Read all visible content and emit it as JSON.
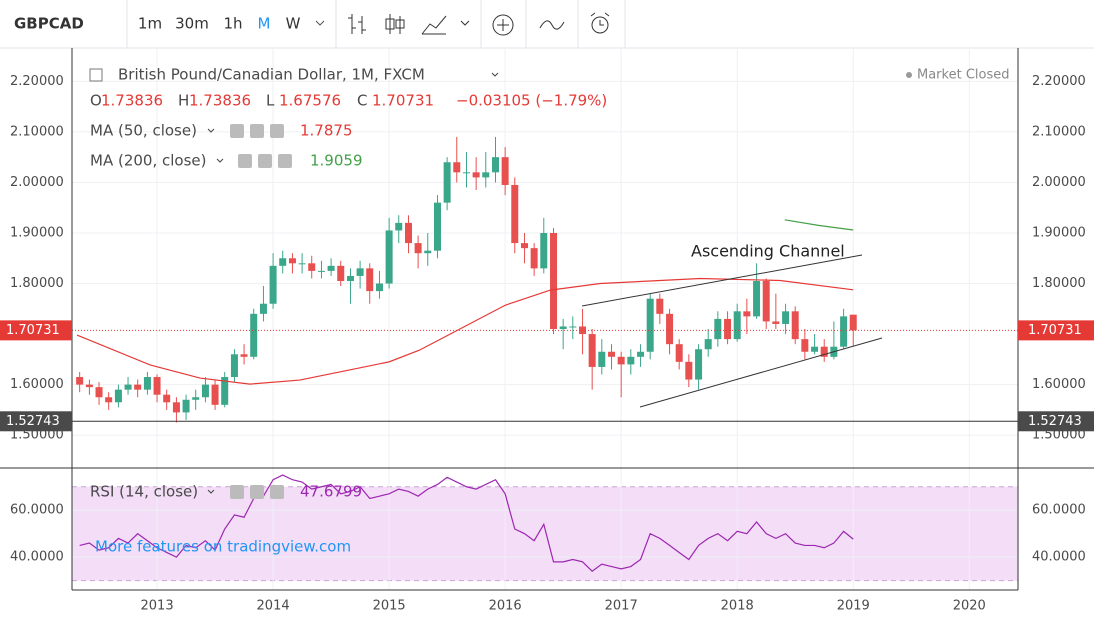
{
  "toolbar": {
    "symbol": "GBPCAD",
    "intervals": [
      "1m",
      "30m",
      "1h",
      "M",
      "W"
    ],
    "active_interval": 3
  },
  "legend": {
    "title": "British Pound/Canadian Dollar, 1M, FXCM",
    "ohlc_labels": [
      "O",
      "H",
      "L",
      "C"
    ],
    "change": "−0.03105 (−1.79%)",
    "status": "Market Closed"
  },
  "watermark": "More features on tradingview.com",
  "chart_data": {
    "type": "candlestick",
    "x": [
      2012.333,
      2012.417,
      2012.5,
      2012.583,
      2012.667,
      2012.75,
      2012.833,
      2012.917,
      2013.0,
      2013.083,
      2013.167,
      2013.25,
      2013.333,
      2013.417,
      2013.5,
      2013.583,
      2013.667,
      2013.75,
      2013.833,
      2013.917,
      2014.0,
      2014.083,
      2014.167,
      2014.25,
      2014.333,
      2014.417,
      2014.5,
      2014.583,
      2014.667,
      2014.75,
      2014.833,
      2014.917,
      2015.0,
      2015.083,
      2015.167,
      2015.25,
      2015.333,
      2015.417,
      2015.5,
      2015.583,
      2015.667,
      2015.75,
      2015.833,
      2015.917,
      2016.0,
      2016.083,
      2016.167,
      2016.25,
      2016.333,
      2016.417,
      2016.5,
      2016.583,
      2016.667,
      2016.75,
      2016.833,
      2016.917,
      2017.0,
      2017.083,
      2017.167,
      2017.25,
      2017.333,
      2017.417,
      2017.5,
      2017.583,
      2017.667,
      2017.75,
      2017.833,
      2017.917,
      2018.0,
      2018.083,
      2018.167,
      2018.25,
      2018.333,
      2018.417,
      2018.5,
      2018.583,
      2018.667,
      2018.75,
      2018.833,
      2018.917,
      2019.0
    ],
    "open": [
      1.615,
      1.6,
      1.595,
      1.575,
      1.565,
      1.59,
      1.6,
      1.59,
      1.615,
      1.58,
      1.565,
      1.545,
      1.57,
      1.575,
      1.6,
      1.56,
      1.615,
      1.66,
      1.655,
      1.74,
      1.76,
      1.835,
      1.85,
      1.84,
      1.84,
      1.825,
      1.825,
      1.835,
      1.805,
      1.815,
      1.83,
      1.785,
      1.8,
      1.905,
      1.92,
      1.88,
      1.86,
      1.865,
      1.96,
      2.04,
      2.02,
      2.02,
      2.01,
      2.02,
      2.05,
      1.995,
      1.88,
      1.87,
      1.83,
      1.9,
      1.71,
      1.715,
      1.715,
      1.7,
      1.635,
      1.665,
      1.655,
      1.64,
      1.655,
      1.665,
      1.77,
      1.74,
      1.68,
      1.645,
      1.61,
      1.67,
      1.69,
      1.73,
      1.69,
      1.745,
      1.735,
      1.805,
      1.725,
      1.72,
      1.745,
      1.69,
      1.665,
      1.675,
      1.655,
      1.675,
      1.73836
    ],
    "high": [
      1.625,
      1.61,
      1.605,
      1.585,
      1.6,
      1.615,
      1.61,
      1.625,
      1.62,
      1.59,
      1.575,
      1.58,
      1.59,
      1.615,
      1.61,
      1.625,
      1.67,
      1.68,
      1.75,
      1.795,
      1.86,
      1.865,
      1.86,
      1.86,
      1.855,
      1.845,
      1.85,
      1.845,
      1.83,
      1.845,
      1.84,
      1.825,
      1.93,
      1.935,
      1.935,
      1.895,
      1.9,
      1.975,
      2.05,
      2.09,
      2.06,
      2.05,
      2.06,
      2.09,
      2.07,
      2.01,
      1.9,
      1.88,
      1.93,
      1.91,
      1.73,
      1.735,
      1.75,
      1.71,
      1.69,
      1.68,
      1.665,
      1.67,
      1.68,
      1.78,
      1.78,
      1.75,
      1.69,
      1.66,
      1.68,
      1.71,
      1.745,
      1.745,
      1.76,
      1.77,
      1.84,
      1.81,
      1.78,
      1.76,
      1.755,
      1.71,
      1.7,
      1.69,
      1.725,
      1.75,
      1.73836
    ],
    "low": [
      1.585,
      1.58,
      1.56,
      1.55,
      1.555,
      1.58,
      1.575,
      1.58,
      1.565,
      1.55,
      1.525,
      1.53,
      1.55,
      1.565,
      1.55,
      1.555,
      1.605,
      1.64,
      1.65,
      1.725,
      1.75,
      1.82,
      1.82,
      1.82,
      1.81,
      1.81,
      1.815,
      1.795,
      1.76,
      1.79,
      1.76,
      1.77,
      1.79,
      1.88,
      1.86,
      1.83,
      1.835,
      1.85,
      1.945,
      2.0,
      1.99,
      1.985,
      1.99,
      2.0,
      1.975,
      1.86,
      1.84,
      1.815,
      1.82,
      1.7,
      1.67,
      1.69,
      1.66,
      1.59,
      1.62,
      1.63,
      1.575,
      1.62,
      1.635,
      1.65,
      1.72,
      1.66,
      1.63,
      1.595,
      1.59,
      1.655,
      1.675,
      1.68,
      1.685,
      1.7,
      1.73,
      1.71,
      1.71,
      1.7,
      1.68,
      1.65,
      1.66,
      1.645,
      1.65,
      1.67,
      1.67576
    ],
    "close": [
      1.6,
      1.595,
      1.575,
      1.565,
      1.59,
      1.6,
      1.59,
      1.615,
      1.58,
      1.565,
      1.545,
      1.57,
      1.575,
      1.6,
      1.56,
      1.615,
      1.66,
      1.655,
      1.74,
      1.76,
      1.835,
      1.85,
      1.84,
      1.84,
      1.825,
      1.825,
      1.835,
      1.805,
      1.815,
      1.83,
      1.785,
      1.8,
      1.905,
      1.92,
      1.88,
      1.86,
      1.865,
      1.96,
      2.04,
      2.02,
      2.02,
      2.01,
      2.02,
      2.05,
      1.995,
      1.88,
      1.87,
      1.83,
      1.9,
      1.71,
      1.715,
      1.715,
      1.7,
      1.635,
      1.665,
      1.655,
      1.64,
      1.655,
      1.665,
      1.77,
      1.74,
      1.68,
      1.645,
      1.61,
      1.67,
      1.69,
      1.73,
      1.69,
      1.745,
      1.735,
      1.805,
      1.725,
      1.72,
      1.745,
      1.69,
      1.665,
      1.675,
      1.655,
      1.675,
      1.735,
      1.70731
    ],
    "up_color": "#3aa68a",
    "down_color": "#e8504f",
    "xlim": [
      2012.267,
      2020.42
    ],
    "xticks": [
      2013,
      2014,
      2015,
      2016,
      2017,
      2018,
      2019,
      2020
    ],
    "ylim": [
      1.435,
      2.266
    ],
    "yticks": [
      {
        "value": 1.5,
        "label": "1.50000"
      },
      {
        "value": 1.6,
        "label": "1.60000"
      },
      {
        "value": 1.8,
        "label": "1.80000"
      },
      {
        "value": 1.9,
        "label": "1.90000"
      },
      {
        "value": 2.0,
        "label": "2.00000"
      },
      {
        "value": 2.1,
        "label": "2.10000"
      },
      {
        "value": 2.2,
        "label": "2.20000"
      }
    ],
    "grid": true,
    "crosshair_price": 1.52743,
    "annotation": "Ascending Channel",
    "indicators": [
      {
        "name": "MA (50, close)",
        "color": "#e53935",
        "x": [
          2012.31,
          2012.94,
          2013.37,
          2013.8,
          2014.23,
          2014.66,
          2015.0,
          2015.26,
          2015.61,
          2016.0,
          2016.39,
          2016.82,
          2017.68,
          2018.37,
          2019.0
        ],
        "values": [
          1.698,
          1.639,
          1.613,
          1.601,
          1.609,
          1.629,
          1.645,
          1.668,
          1.71,
          1.757,
          1.787,
          1.8,
          1.81,
          1.806,
          1.7875
        ]
      },
      {
        "name": "MA (200, close)",
        "color": "#43a047",
        "x": [
          2018.41,
          2018.7,
          2019.0
        ],
        "values": [
          1.926,
          1.915,
          1.9059
        ]
      }
    ],
    "rsi": {
      "name": "RSI (14, close)",
      "color": "#9c27b0",
      "band_color": "#f3ddf7",
      "bands": [
        30,
        70
      ],
      "ylim": [
        26,
        78
      ],
      "yticks": [
        {
          "value": 40,
          "label": "40.0000"
        },
        {
          "value": 60,
          "label": "60.0000"
        }
      ],
      "values": [
        45,
        46,
        43,
        44,
        48,
        46,
        50,
        47,
        44,
        42,
        40,
        45,
        44,
        47,
        43,
        52,
        58,
        57,
        65,
        66,
        73,
        75,
        73,
        72,
        69,
        70,
        71,
        67,
        68,
        70,
        65,
        66,
        67,
        69,
        68,
        66,
        69,
        71,
        74,
        72,
        70,
        69,
        71,
        73,
        67,
        52,
        50,
        47,
        54,
        38,
        38,
        39,
        38,
        34,
        37,
        36,
        35,
        36,
        39,
        50,
        48,
        45,
        42,
        39,
        45,
        48,
        50,
        47,
        51,
        50,
        55,
        50,
        48,
        50,
        46,
        45,
        45,
        44,
        46,
        51,
        47.6799
      ]
    }
  }
}
